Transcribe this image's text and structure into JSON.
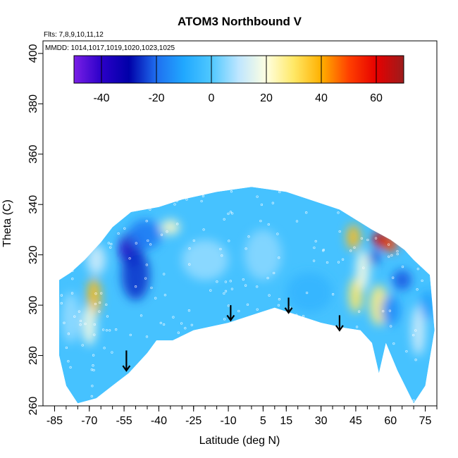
{
  "chart_data": {
    "type": "heatmap",
    "title": "ATOM3 Northbound V",
    "annotations": {
      "flights": "Flts: 7,8,9,10,11,12",
      "dates": "MMDD: 1014,1017,1019,1020,1023,1025"
    },
    "xlabel": "Latitude (deg N)",
    "ylabel": "Theta (C)",
    "xlim": [
      -90,
      80
    ],
    "ylim": [
      260,
      405
    ],
    "x_ticks": [
      -85,
      -70,
      -55,
      -40,
      -25,
      -10,
      5,
      15,
      30,
      45,
      60,
      75
    ],
    "x_tick_labels": [
      "-85",
      "-70",
      "-55",
      "-40",
      "-25",
      "-10",
      "5",
      "15",
      "30",
      "45",
      "60",
      "75"
    ],
    "x_minor_step": 5,
    "y_ticks": [
      260,
      280,
      300,
      320,
      340,
      360,
      380,
      400
    ],
    "y_tick_labels": [
      "260",
      "280",
      "300",
      "320",
      "340",
      "360",
      "380",
      "400"
    ],
    "colorbar": {
      "range": [
        -50,
        70
      ],
      "ticks": [
        -40,
        -20,
        0,
        20,
        40,
        60
      ],
      "tick_labels": [
        "-40",
        "-20",
        "0",
        "20",
        "40",
        "60"
      ],
      "stops": [
        {
          "v": -50,
          "c": "#7a1fe6"
        },
        {
          "v": -40,
          "c": "#2b00c8"
        },
        {
          "v": -30,
          "c": "#0000a8"
        },
        {
          "v": -20,
          "c": "#1f6ff0"
        },
        {
          "v": -10,
          "c": "#20a8ff"
        },
        {
          "v": 0,
          "c": "#4fc8ff"
        },
        {
          "v": 10,
          "c": "#bfe6ff"
        },
        {
          "v": 20,
          "c": "#ffffe0"
        },
        {
          "v": 30,
          "c": "#ffe866"
        },
        {
          "v": 40,
          "c": "#ffb000"
        },
        {
          "v": 50,
          "c": "#ff4000"
        },
        {
          "v": 60,
          "c": "#e60000"
        },
        {
          "v": 70,
          "c": "#9c1c1c"
        }
      ]
    },
    "data_boundary": {
      "upper": [
        {
          "lat": -83,
          "theta": 310
        },
        {
          "lat": -78,
          "theta": 313
        },
        {
          "lat": -72,
          "theta": 318
        },
        {
          "lat": -65,
          "theta": 325
        },
        {
          "lat": -60,
          "theta": 331
        },
        {
          "lat": -52,
          "theta": 337
        },
        {
          "lat": -40,
          "theta": 339
        },
        {
          "lat": -30,
          "theta": 342
        },
        {
          "lat": -15,
          "theta": 345
        },
        {
          "lat": 0,
          "theta": 347
        },
        {
          "lat": 15,
          "theta": 345
        },
        {
          "lat": 25,
          "theta": 342
        },
        {
          "lat": 38,
          "theta": 338
        },
        {
          "lat": 45,
          "theta": 334
        },
        {
          "lat": 52,
          "theta": 330
        },
        {
          "lat": 60,
          "theta": 326
        },
        {
          "lat": 66,
          "theta": 322
        },
        {
          "lat": 70,
          "theta": 318
        },
        {
          "lat": 77,
          "theta": 312
        },
        {
          "lat": 79,
          "theta": 290
        }
      ],
      "lower": [
        {
          "lat": -83,
          "theta": 280
        },
        {
          "lat": -80,
          "theta": 268
        },
        {
          "lat": -75,
          "theta": 261
        },
        {
          "lat": -67,
          "theta": 263
        },
        {
          "lat": -60,
          "theta": 268
        },
        {
          "lat": -53,
          "theta": 273
        },
        {
          "lat": -45,
          "theta": 281
        },
        {
          "lat": -41,
          "theta": 286
        },
        {
          "lat": -34,
          "theta": 286
        },
        {
          "lat": -25,
          "theta": 290
        },
        {
          "lat": -10,
          "theta": 293
        },
        {
          "lat": 0,
          "theta": 296
        },
        {
          "lat": 10,
          "theta": 299
        },
        {
          "lat": 20,
          "theta": 296
        },
        {
          "lat": 30,
          "theta": 293
        },
        {
          "lat": 40,
          "theta": 291
        },
        {
          "lat": 47,
          "theta": 290
        },
        {
          "lat": 52,
          "theta": 285
        },
        {
          "lat": 55,
          "theta": 273
        },
        {
          "lat": 58,
          "theta": 285
        },
        {
          "lat": 63,
          "theta": 274
        },
        {
          "lat": 70,
          "theta": 261
        },
        {
          "lat": 75,
          "theta": 268
        },
        {
          "lat": 79,
          "theta": 290
        }
      ]
    },
    "field_features": [
      {
        "lat": -52,
        "theta": 322,
        "value": -38,
        "rx": 5,
        "ry": 7
      },
      {
        "lat": -50,
        "theta": 312,
        "value": -25,
        "rx": 6,
        "ry": 10
      },
      {
        "lat": -46,
        "theta": 328,
        "value": -18,
        "rx": 7,
        "ry": 6
      },
      {
        "lat": -68,
        "theta": 303,
        "value": 38,
        "rx": 3,
        "ry": 8
      },
      {
        "lat": -70,
        "theta": 292,
        "value": 18,
        "rx": 3,
        "ry": 8
      },
      {
        "lat": -67,
        "theta": 318,
        "value": 12,
        "rx": 4,
        "ry": 6
      },
      {
        "lat": -35,
        "theta": 331,
        "value": 22,
        "rx": 4,
        "ry": 3
      },
      {
        "lat": -20,
        "theta": 318,
        "value": 6,
        "rx": 10,
        "ry": 8
      },
      {
        "lat": 5,
        "theta": 320,
        "value": 5,
        "rx": 8,
        "ry": 10
      },
      {
        "lat": 25,
        "theta": 305,
        "value": -6,
        "rx": 10,
        "ry": 8
      },
      {
        "lat": -78,
        "theta": 295,
        "value": 6,
        "rx": 4,
        "ry": 10
      },
      {
        "lat": 44,
        "theta": 327,
        "value": 38,
        "rx": 3,
        "ry": 5
      },
      {
        "lat": 45,
        "theta": 304,
        "value": 30,
        "rx": 3,
        "ry": 7
      },
      {
        "lat": 48,
        "theta": 314,
        "value": 18,
        "rx": 3,
        "ry": 8
      },
      {
        "lat": 56,
        "theta": 326,
        "value": 62,
        "rx": 4,
        "ry": 3
      },
      {
        "lat": 60,
        "theta": 324,
        "value": 50,
        "rx": 3,
        "ry": 3
      },
      {
        "lat": 53,
        "theta": 319,
        "value": -25,
        "rx": 2,
        "ry": 3
      },
      {
        "lat": 65,
        "theta": 310,
        "value": -22,
        "rx": 4,
        "ry": 4
      },
      {
        "lat": 55,
        "theta": 300,
        "value": 28,
        "rx": 4,
        "ry": 8
      },
      {
        "lat": 60,
        "theta": 298,
        "value": -15,
        "rx": 4,
        "ry": 6
      },
      {
        "lat": 72,
        "theta": 290,
        "value": 12,
        "rx": 3,
        "ry": 10
      },
      {
        "lat": 76,
        "theta": 300,
        "value": -12,
        "rx": 3,
        "ry": 6
      }
    ],
    "arrows": [
      {
        "lat": -54,
        "theta_top": 282,
        "theta_bottom": 274
      },
      {
        "lat": -9,
        "theta_top": 300,
        "theta_bottom": 294
      },
      {
        "lat": 16,
        "theta_top": 303,
        "theta_bottom": 297
      },
      {
        "lat": 38,
        "theta_top": 296,
        "theta_bottom": 290
      }
    ]
  }
}
